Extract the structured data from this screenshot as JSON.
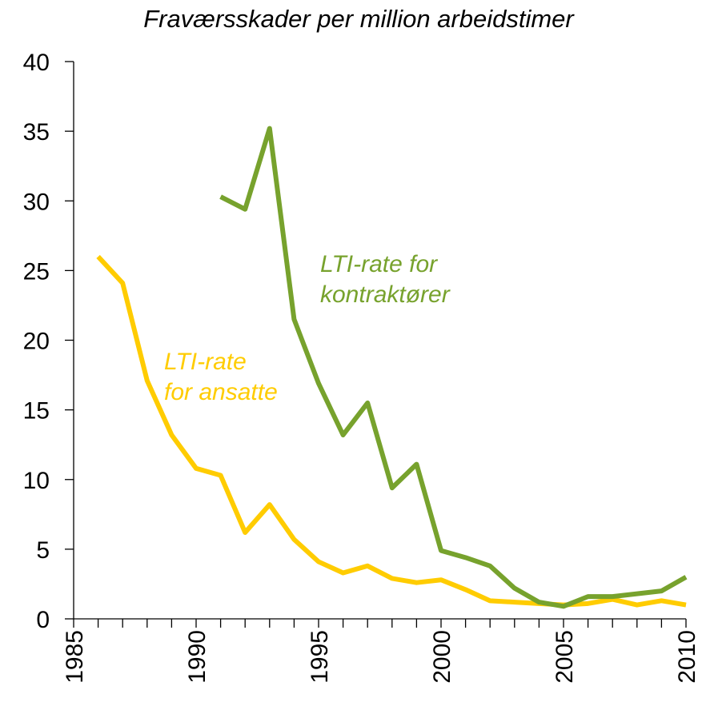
{
  "chart_data": {
    "type": "line",
    "title": "Fraværsskader per million arbeidstimer",
    "x": [
      1986,
      1987,
      1988,
      1989,
      1990,
      1991,
      1992,
      1993,
      1994,
      1995,
      1996,
      1997,
      1998,
      1999,
      2000,
      2001,
      2002,
      2003,
      2004,
      2005,
      2006,
      2007,
      2008,
      2009,
      2010
    ],
    "series": [
      {
        "name": "LTI-rate for ansatte",
        "color": "#ffcc00",
        "values": [
          26.0,
          24.1,
          17.1,
          13.2,
          10.8,
          10.3,
          6.2,
          8.2,
          5.7,
          4.1,
          3.3,
          3.8,
          2.9,
          2.6,
          2.8,
          2.1,
          1.3,
          1.2,
          1.1,
          1.0,
          1.1,
          1.4,
          1.0,
          1.3,
          1.0
        ]
      },
      {
        "name": "LTI-rate for kontraktører",
        "color": "#77a22d",
        "values": [
          null,
          null,
          null,
          null,
          null,
          30.3,
          29.4,
          35.2,
          21.5,
          16.9,
          13.2,
          15.5,
          9.4,
          11.1,
          4.9,
          4.4,
          3.8,
          2.2,
          1.2,
          0.9,
          1.6,
          1.6,
          1.8,
          2.0,
          3.0
        ]
      }
    ],
    "annotations": [
      {
        "lines": [
          "LTI-rate",
          "for ansatte"
        ],
        "color": "#ffcc00"
      },
      {
        "lines": [
          "LTI-rate for",
          "kontraktører"
        ],
        "color": "#77a22d"
      }
    ],
    "xlim": [
      1985,
      2010
    ],
    "xticks": [
      1985,
      1990,
      1995,
      2000,
      2005,
      2010
    ],
    "xminorticks": [
      1985,
      1986,
      1987,
      1988,
      1989,
      1990,
      1991,
      1992,
      1993,
      1994,
      1995,
      1996,
      1997,
      1998,
      1999,
      2000,
      2001,
      2002,
      2003,
      2004,
      2005,
      2006,
      2007,
      2008,
      2009,
      2010
    ],
    "ylim": [
      0,
      40
    ],
    "yticks": [
      0,
      5,
      10,
      15,
      20,
      25,
      30,
      35,
      40
    ],
    "grid": false
  }
}
